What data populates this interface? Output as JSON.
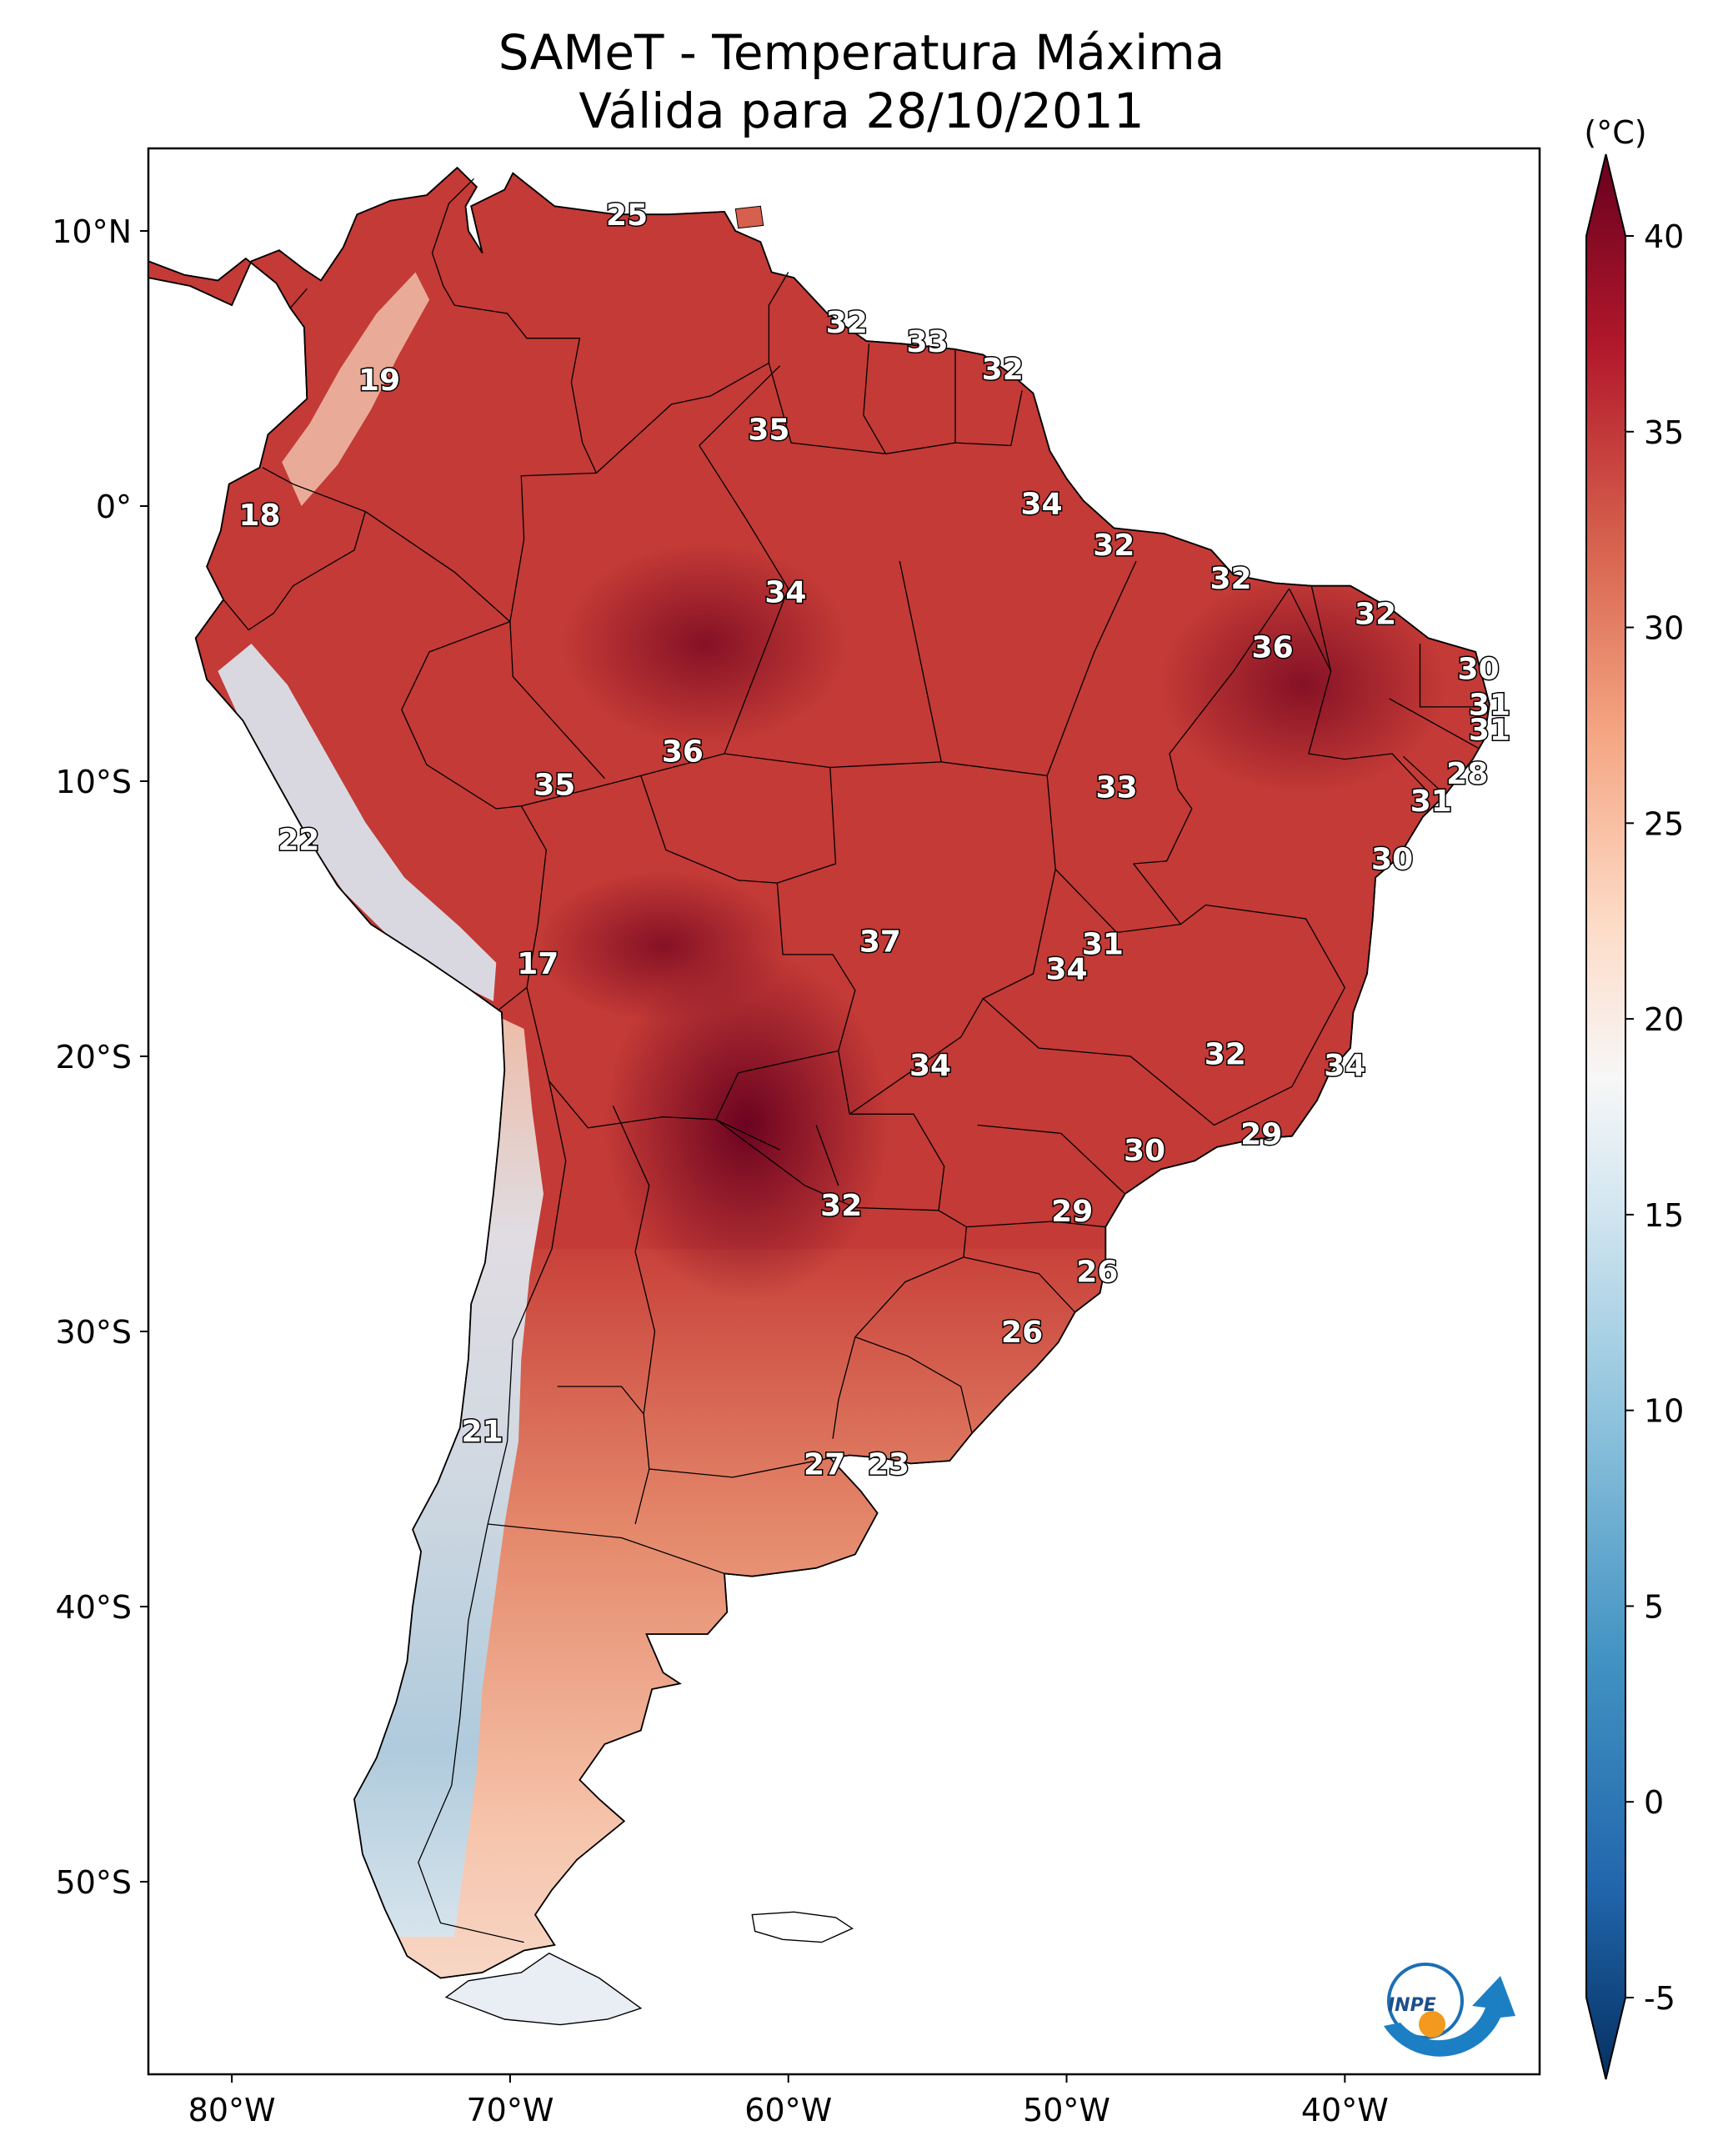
{
  "title": {
    "line1": "SAMeT - Temperatura Máxima",
    "line2": "Válida para 28/10/2011"
  },
  "map": {
    "lon_range": [
      -83,
      -33
    ],
    "lat_range": [
      -57,
      13
    ],
    "lon_ticks": [
      {
        "value": -80,
        "label": "80°W"
      },
      {
        "value": -70,
        "label": "70°W"
      },
      {
        "value": -60,
        "label": "60°W"
      },
      {
        "value": -50,
        "label": "50°W"
      },
      {
        "value": -40,
        "label": "40°W"
      }
    ],
    "lat_ticks": [
      {
        "value": 10,
        "label": "10°N"
      },
      {
        "value": 0,
        "label": "0°"
      },
      {
        "value": -10,
        "label": "10°S"
      },
      {
        "value": -20,
        "label": "20°S"
      },
      {
        "value": -30,
        "label": "30°S"
      },
      {
        "value": -40,
        "label": "40°S"
      },
      {
        "value": -50,
        "label": "50°S"
      }
    ],
    "temperature_labels": [
      {
        "text": "25",
        "lon": -65.8,
        "lat": 10.6
      },
      {
        "text": "32",
        "lon": -57.9,
        "lat": 6.7
      },
      {
        "text": "33",
        "lon": -55.0,
        "lat": 6.0
      },
      {
        "text": "32",
        "lon": -52.3,
        "lat": 5.0
      },
      {
        "text": "19",
        "lon": -74.7,
        "lat": 4.6
      },
      {
        "text": "35",
        "lon": -60.7,
        "lat": 2.8
      },
      {
        "text": "34",
        "lon": -50.9,
        "lat": 0.1
      },
      {
        "text": "18",
        "lon": -79.0,
        "lat": -0.3
      },
      {
        "text": "32",
        "lon": -48.3,
        "lat": -1.4
      },
      {
        "text": "32",
        "lon": -44.1,
        "lat": -2.6
      },
      {
        "text": "34",
        "lon": -60.1,
        "lat": -3.1
      },
      {
        "text": "32",
        "lon": -38.9,
        "lat": -3.9
      },
      {
        "text": "36",
        "lon": -42.6,
        "lat": -5.1
      },
      {
        "text": "30",
        "lon": -35.2,
        "lat": -5.9
      },
      {
        "text": "31",
        "lon": -34.8,
        "lat": -7.2
      },
      {
        "text": "31",
        "lon": -34.8,
        "lat": -8.1
      },
      {
        "text": "36",
        "lon": -63.8,
        "lat": -8.9
      },
      {
        "text": "28",
        "lon": -35.6,
        "lat": -9.7
      },
      {
        "text": "35",
        "lon": -68.4,
        "lat": -10.1
      },
      {
        "text": "33",
        "lon": -48.2,
        "lat": -10.2
      },
      {
        "text": "31",
        "lon": -36.9,
        "lat": -10.7
      },
      {
        "text": "22",
        "lon": -77.6,
        "lat": -12.1
      },
      {
        "text": "30",
        "lon": -38.3,
        "lat": -12.8
      },
      {
        "text": "37",
        "lon": -56.7,
        "lat": -15.8
      },
      {
        "text": "31",
        "lon": -48.7,
        "lat": -15.9
      },
      {
        "text": "34",
        "lon": -50.0,
        "lat": -16.8
      },
      {
        "text": "17",
        "lon": -69.0,
        "lat": -16.6
      },
      {
        "text": "32",
        "lon": -44.3,
        "lat": -19.9
      },
      {
        "text": "34",
        "lon": -54.9,
        "lat": -20.3
      },
      {
        "text": "34",
        "lon": -40.0,
        "lat": -20.3
      },
      {
        "text": "29",
        "lon": -43.0,
        "lat": -22.8
      },
      {
        "text": "30",
        "lon": -47.2,
        "lat": -23.4
      },
      {
        "text": "32",
        "lon": -58.1,
        "lat": -25.4
      },
      {
        "text": "29",
        "lon": -49.8,
        "lat": -25.6
      },
      {
        "text": "26",
        "lon": -48.9,
        "lat": -27.8
      },
      {
        "text": "26",
        "lon": -51.6,
        "lat": -30.0
      },
      {
        "text": "21",
        "lon": -71.0,
        "lat": -33.6
      },
      {
        "text": "27",
        "lon": -58.7,
        "lat": -34.8
      },
      {
        "text": "23",
        "lon": -56.4,
        "lat": -34.8
      }
    ]
  },
  "colorbar": {
    "unit_label": "(°C)",
    "min": -5,
    "max": 40,
    "extend": "both",
    "tick_values": [
      40,
      35,
      30,
      25,
      20,
      15,
      10,
      5,
      0,
      -5
    ],
    "tick_labels": [
      "40",
      "35",
      "30",
      "25",
      "20",
      "15",
      "10",
      "5",
      "0",
      "-5"
    ],
    "colormap": [
      "#053061",
      "#2166ac",
      "#4393c3",
      "#92c5de",
      "#d1e5f0",
      "#f7f7f7",
      "#fddbc7",
      "#f4a582",
      "#d6604d",
      "#b2182b",
      "#67001f"
    ]
  },
  "logo": {
    "text": "INPE"
  }
}
